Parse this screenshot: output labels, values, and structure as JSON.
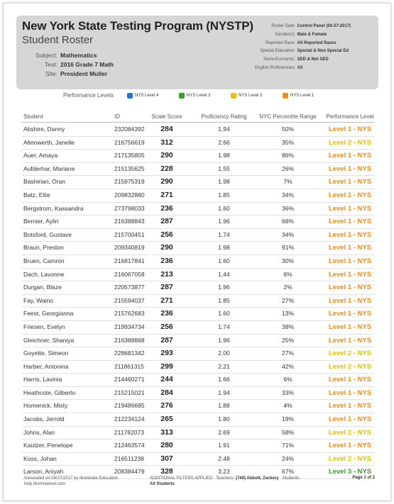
{
  "header": {
    "title": "New York State Testing Program (NYSTP)",
    "subtitle": "Student Roster",
    "subject_label": "Subject:",
    "subject": "Mathematics",
    "test_label": "Test:",
    "test": "2016 Grade 7 Math",
    "site_label": "Site:",
    "site": "President Muller",
    "filters": [
      {
        "label": "Roster Date:",
        "value": "Control Panel (04-27-2017)"
      },
      {
        "label": "Gender(s):",
        "value": "Male & Female"
      },
      {
        "label": "Reported Race:",
        "value": "All Reported Races"
      },
      {
        "label": "Special Education:",
        "value": "Special & Non Special Ed"
      },
      {
        "label": "Socio-Economic:",
        "value": "SED & Not SED"
      },
      {
        "label": "English Proficiencies:",
        "value": "All"
      }
    ]
  },
  "legend": {
    "title": "Performance Levels",
    "items": [
      {
        "label": "NYS Level 4",
        "color": "#1f74d6"
      },
      {
        "label": "NYS Level 3",
        "color": "#3b9a2e"
      },
      {
        "label": "NYS Level 2",
        "color": "#e6c300"
      },
      {
        "label": "NYS Level 1",
        "color": "#f08a1c"
      }
    ]
  },
  "table": {
    "headers": [
      "Student",
      "ID",
      "Scale Score",
      "Proficiency Rating",
      "NYC Percentile Range",
      "Performance Level"
    ],
    "rows": [
      {
        "name": "Abshire, Danny",
        "id": "232084392",
        "score": "284",
        "rating": "1.94",
        "pct": "50%",
        "level": "Level 1 - NYS",
        "color": "#f08a1c"
      },
      {
        "name": "Altenwerth, Janelle",
        "id": "216756619",
        "score": "312",
        "rating": "2.66",
        "pct": "35%",
        "level": "Level 2 - NYS",
        "color": "#e2bf00"
      },
      {
        "name": "Auer, Amaya",
        "id": "217135805",
        "score": "290",
        "rating": "1.98",
        "pct": "86%",
        "level": "Level 1 - NYS",
        "color": "#f08a1c"
      },
      {
        "name": "Aufderhar, Mariane",
        "id": "215135625",
        "score": "228",
        "rating": "1.55",
        "pct": "26%",
        "level": "Level 1 - NYS",
        "color": "#f08a1c"
      },
      {
        "name": "Bashirian, Oran",
        "id": "215975319",
        "score": "290",
        "rating": "1.98",
        "pct": "7%",
        "level": "Level 1 - NYS",
        "color": "#f08a1c"
      },
      {
        "name": "Batz, Ellie",
        "id": "209832880",
        "score": "271",
        "rating": "1.85",
        "pct": "34%",
        "level": "Level 1 - NYS",
        "color": "#f08a1c"
      },
      {
        "name": "Bergstrom, Kassandra",
        "id": "273798033",
        "score": "236",
        "rating": "1.60",
        "pct": "36%",
        "level": "Level 1 - NYS",
        "color": "#f08a1c"
      },
      {
        "name": "Bernier, Aylin",
        "id": "216388843",
        "score": "287",
        "rating": "1.96",
        "pct": "68%",
        "level": "Level 1 - NYS",
        "color": "#f08a1c"
      },
      {
        "name": "Botsford, Gustave",
        "id": "215700451",
        "score": "256",
        "rating": "1.74",
        "pct": "34%",
        "level": "Level 1 - NYS",
        "color": "#f08a1c"
      },
      {
        "name": "Braun, Preston",
        "id": "209340819",
        "score": "290",
        "rating": "1.98",
        "pct": "91%",
        "level": "Level 1 - NYS",
        "color": "#f08a1c"
      },
      {
        "name": "Bruen, Camron",
        "id": "216817841",
        "score": "236",
        "rating": "1.60",
        "pct": "30%",
        "level": "Level 1 - NYS",
        "color": "#f08a1c"
      },
      {
        "name": "Dach, Lavonne",
        "id": "216067058",
        "score": "213",
        "rating": "1.44",
        "pct": "6%",
        "level": "Level 1 - NYS",
        "color": "#f08a1c"
      },
      {
        "name": "Durgan, Blaze",
        "id": "220573877",
        "score": "287",
        "rating": "1.96",
        "pct": "2%",
        "level": "Level 1 - NYS",
        "color": "#f08a1c"
      },
      {
        "name": "Fay, Waino",
        "id": "215594037",
        "score": "271",
        "rating": "1.85",
        "pct": "27%",
        "level": "Level 1 - NYS",
        "color": "#f08a1c"
      },
      {
        "name": "Feest, Georgianna",
        "id": "215762683",
        "score": "236",
        "rating": "1.60",
        "pct": "13%",
        "level": "Level 1 - NYS",
        "color": "#f08a1c"
      },
      {
        "name": "Friesen, Evelyn",
        "id": "219934734",
        "score": "256",
        "rating": "1.74",
        "pct": "38%",
        "level": "Level 1 - NYS",
        "color": "#f08a1c"
      },
      {
        "name": "Gleichner, Shaniya",
        "id": "216388868",
        "score": "287",
        "rating": "1.96",
        "pct": "25%",
        "level": "Level 1 - NYS",
        "color": "#f08a1c"
      },
      {
        "name": "Goyette, Simeon",
        "id": "228681342",
        "score": "293",
        "rating": "2.00",
        "pct": "27%",
        "level": "Level 2 - NYS",
        "color": "#e2bf00"
      },
      {
        "name": "Harber, Antonina",
        "id": "211861315",
        "score": "299",
        "rating": "2.21",
        "pct": "42%",
        "level": "Level 2 - NYS",
        "color": "#e2bf00"
      },
      {
        "name": "Harris, Lavinia",
        "id": "214460271",
        "score": "244",
        "rating": "1.66",
        "pct": "6%",
        "level": "Level 1 - NYS",
        "color": "#f08a1c"
      },
      {
        "name": "Heathcote, Gilberto",
        "id": "215215021",
        "score": "284",
        "rating": "1.94",
        "pct": "33%",
        "level": "Level 1 - NYS",
        "color": "#f08a1c"
      },
      {
        "name": "Homenick, Misty",
        "id": "219486685",
        "score": "276",
        "rating": "1.88",
        "pct": "4%",
        "level": "Level 1 - NYS",
        "color": "#f08a1c"
      },
      {
        "name": "Jacobs, Jerrold",
        "id": "212234124",
        "score": "265",
        "rating": "1.80",
        "pct": "19%",
        "level": "Level 1 - NYS",
        "color": "#f08a1c"
      },
      {
        "name": "Johns, Alan",
        "id": "211782073",
        "score": "313",
        "rating": "2.69",
        "pct": "58%",
        "level": "Level 2 - NYS",
        "color": "#e2bf00"
      },
      {
        "name": "Kautzer, Penelope",
        "id": "212463574",
        "score": "280",
        "rating": "1.91",
        "pct": "71%",
        "level": "Level 1 - NYS",
        "color": "#f08a1c"
      },
      {
        "name": "Koss, Johan",
        "id": "216511238",
        "score": "307",
        "rating": "2.48",
        "pct": "24%",
        "level": "Level 2 - NYS",
        "color": "#e2bf00"
      },
      {
        "name": "Larson, Aniyah",
        "id": "208384479",
        "score": "328",
        "rating": "3.23",
        "pct": "67%",
        "level": "Level 3 - NYS",
        "color": "#3b9a2e"
      }
    ]
  },
  "footer": {
    "generated": "Generated on 04/27/2017 by Illuminate Education",
    "url": "help.illuminateed.com",
    "filters_prefix": "ADDITIONAL FILTERS APPLIED:",
    "teachers_label": "Teachers:",
    "teachers": "(749) Abbott, Zackery",
    "students_label": "Students:",
    "students": "All Students",
    "page": "Page 1 of 3"
  }
}
